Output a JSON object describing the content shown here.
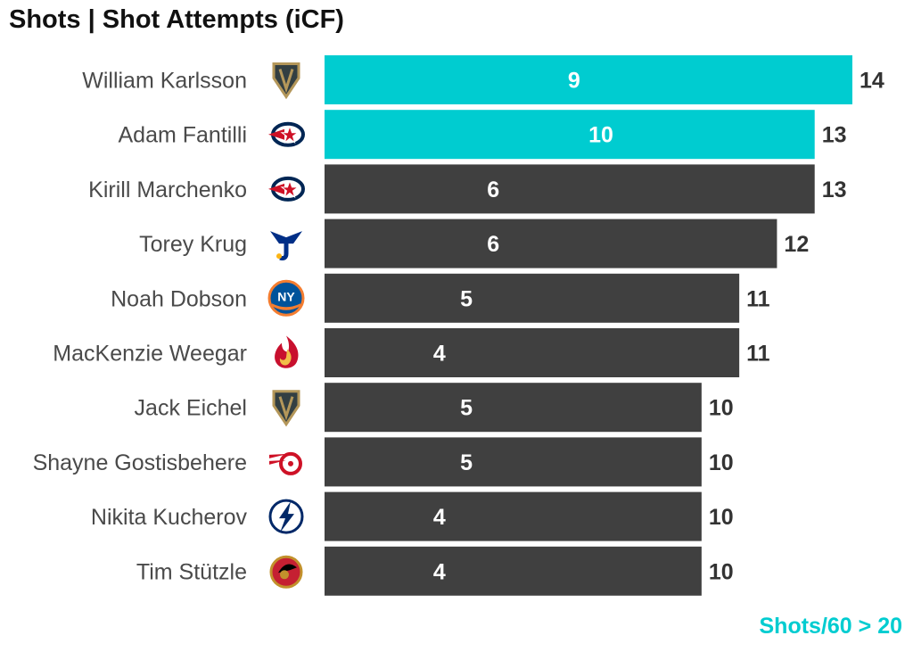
{
  "chart_data": {
    "type": "bar",
    "orientation": "horizontal",
    "title": "Shots | Shot Attempts (iCF)",
    "note": "Shots/60 > 20",
    "xlim": [
      0,
      14
    ],
    "grid": false,
    "legend": "none",
    "colors": {
      "highlight": "#00CCD0",
      "default": "#404040"
    },
    "categories": [
      "William Karlsson",
      "Adam Fantilli",
      "Kirill Marchenko",
      "Torey Krug",
      "Noah Dobson",
      "MacKenzie Weegar",
      "Jack Eichel",
      "Shayne Gostisbehere",
      "Nikita Kucherov",
      "Tim Stützle"
    ],
    "teams": [
      "Vegas Golden Knights",
      "Columbus Blue Jackets",
      "Columbus Blue Jackets",
      "St. Louis Blues",
      "New York Islanders",
      "Calgary Flames",
      "Vegas Golden Knights",
      "Detroit Red Wings",
      "Tampa Bay Lightning",
      "Ottawa Senators"
    ],
    "team_icons": [
      "golden-knights-logo-icon",
      "blue-jackets-logo-icon",
      "blue-jackets-logo-icon",
      "blues-logo-icon",
      "islanders-logo-icon",
      "flames-logo-icon",
      "golden-knights-logo-icon",
      "red-wings-logo-icon",
      "lightning-logo-icon",
      "senators-logo-icon"
    ],
    "series": [
      {
        "name": "Shots",
        "values": [
          9,
          10,
          6,
          6,
          5,
          4,
          5,
          5,
          4,
          4
        ]
      },
      {
        "name": "Shot Attempts (iCF)",
        "values": [
          14,
          13,
          13,
          12,
          11,
          11,
          10,
          10,
          10,
          10
        ]
      }
    ],
    "highlighted": [
      true,
      true,
      false,
      false,
      false,
      false,
      false,
      false,
      false,
      false
    ]
  }
}
